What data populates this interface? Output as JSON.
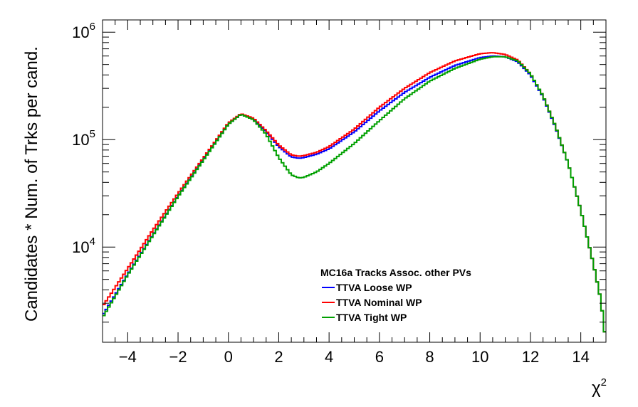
{
  "chart_data": {
    "type": "line",
    "style": "step-histogram",
    "xlabel": "χ2",
    "ylabel": "Candidates * Num. of Trks per cand.",
    "xlim": [
      -5,
      15
    ],
    "ylim": [
      1300,
      1300000
    ],
    "yscale": "log",
    "grid": false,
    "x_ticks": [
      -4,
      -2,
      0,
      2,
      4,
      6,
      8,
      10,
      12,
      14
    ],
    "x_tick_labels": [
      "−4",
      "−2",
      "0",
      "2",
      "4",
      "6",
      "8",
      "10",
      "12",
      "14"
    ],
    "y_ticks": [
      10000,
      100000,
      1000000
    ],
    "y_tick_labels": [
      {
        "base": "10",
        "exp": "4"
      },
      {
        "base": "10",
        "exp": "5"
      },
      {
        "base": "10",
        "exp": "6"
      }
    ],
    "legend": {
      "title": "MC16a Tracks Assoc. other PVs",
      "placement": "center-right"
    },
    "x": [
      -5,
      -4,
      -3,
      -2,
      -1,
      0,
      0.5,
      1,
      1.5,
      2,
      2.5,
      2.8,
      3,
      3.5,
      4,
      5,
      6,
      7,
      8,
      9,
      10,
      10.5,
      11,
      11.5,
      12,
      12.5,
      13,
      13.5,
      14,
      14.5,
      14.8,
      15
    ],
    "series": [
      {
        "name": "TTVA Loose WP",
        "color": "#0000ff",
        "values": [
          2300,
          5600,
          13000,
          30000,
          65000,
          140000,
          172000,
          155000,
          118000,
          86000,
          69000,
          67000,
          68000,
          73000,
          82000,
          118000,
          185000,
          275000,
          380000,
          490000,
          580000,
          600000,
          590000,
          530000,
          400000,
          250000,
          130000,
          60000,
          22000,
          7000,
          3200,
          1300
        ]
      },
      {
        "name": "TTVA Nominal WP",
        "color": "#ff0000",
        "values": [
          2800,
          6300,
          14400,
          31500,
          67000,
          143000,
          174000,
          158000,
          121000,
          89000,
          72000,
          70000,
          71000,
          76000,
          86000,
          125000,
          200000,
          300000,
          420000,
          540000,
          630000,
          645000,
          620000,
          550000,
          410000,
          255000,
          132000,
          60000,
          22000,
          7000,
          3200,
          1300
        ]
      },
      {
        "name": "TTVA Tight WP",
        "color": "#00a000",
        "values": [
          2200,
          5500,
          12800,
          29500,
          64000,
          139000,
          172000,
          153000,
          112000,
          68000,
          47000,
          44000,
          44500,
          50000,
          60000,
          92000,
          150000,
          240000,
          350000,
          460000,
          560000,
          590000,
          590000,
          540000,
          410000,
          255000,
          132000,
          60000,
          22000,
          7000,
          3200,
          1300
        ]
      }
    ]
  }
}
